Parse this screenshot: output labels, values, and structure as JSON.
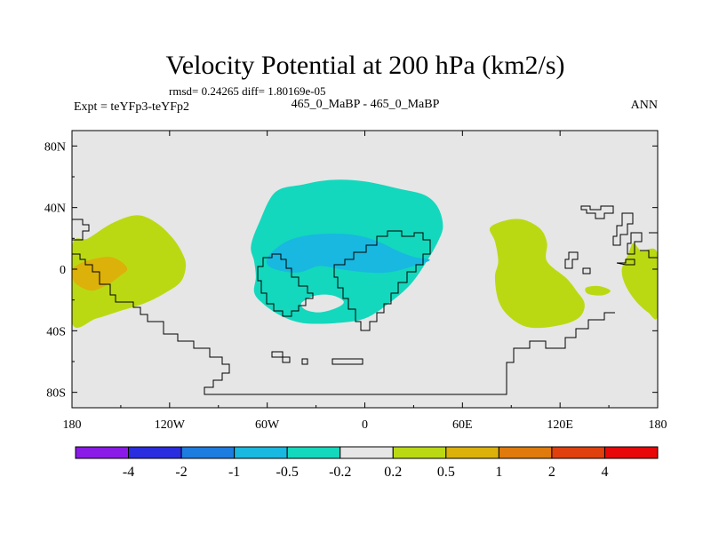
{
  "chart_data": {
    "type": "heatmap",
    "title": "Velocity Potential at 200 hPa (km2/s)",
    "subtitle": "rmsd= 0.24265 diff= 1.80169e-05",
    "left_label": "Expt = teYFp3-teYFp2",
    "center_label": "465_0_MaBP - 465_0_MaBP",
    "right_label": "ANN",
    "x_ticks": [
      "180",
      "120W",
      "60W",
      "0",
      "60E",
      "120E",
      "180"
    ],
    "x_tick_values": [
      -180,
      -120,
      -60,
      0,
      60,
      120,
      180
    ],
    "y_ticks": [
      "80N",
      "40N",
      "0",
      "40S",
      "80S"
    ],
    "y_tick_values": [
      80,
      40,
      0,
      -40,
      -80
    ],
    "xlim": [
      -180,
      180
    ],
    "ylim": [
      -90,
      90
    ],
    "colorbar": {
      "labels": [
        "-4",
        "-2",
        "-1",
        "-0.5",
        "-0.2",
        "0.2",
        "0.5",
        "1",
        "2",
        "4"
      ],
      "colors": [
        "#8b1ae8",
        "#2a2ce0",
        "#1c7ce0",
        "#18b8e0",
        "#13d8bd",
        "#e6e6e6",
        "#bbd913",
        "#dcb10a",
        "#e07a0c",
        "#e0400e",
        "#e80808"
      ]
    },
    "regions": [
      {
        "name": "west-pacific-positive",
        "level": "0.2 to 0.5",
        "color": "#bbd913",
        "points": [
          [
            -180,
            15
          ],
          [
            -170,
            20
          ],
          [
            -155,
            30
          ],
          [
            -140,
            35
          ],
          [
            -128,
            30
          ],
          [
            -118,
            20
          ],
          [
            -112,
            10
          ],
          [
            -110,
            2
          ],
          [
            -113,
            -8
          ],
          [
            -122,
            -15
          ],
          [
            -135,
            -22
          ],
          [
            -150,
            -27
          ],
          [
            -165,
            -32
          ],
          [
            -180,
            -35
          ]
        ]
      },
      {
        "name": "west-pacific-max",
        "level": "0.5 to 1",
        "color": "#dcb10a",
        "points": [
          [
            -180,
            0
          ],
          [
            -172,
            5
          ],
          [
            -158,
            8
          ],
          [
            -150,
            5
          ],
          [
            -146,
            0
          ],
          [
            -150,
            -4
          ],
          [
            -158,
            -10
          ],
          [
            -168,
            -14
          ],
          [
            -177,
            -10
          ],
          [
            -180,
            -5
          ]
        ]
      },
      {
        "name": "indian-ocean-positive",
        "level": "0.2 to 0.5",
        "color": "#bbd913",
        "points": [
          [
            77,
            27
          ],
          [
            88,
            32
          ],
          [
            98,
            32
          ],
          [
            108,
            26
          ],
          [
            112,
            17
          ],
          [
            112,
            5
          ],
          [
            124,
            -6
          ],
          [
            130,
            -14
          ],
          [
            135,
            -22
          ],
          [
            133,
            -30
          ],
          [
            125,
            -35
          ],
          [
            110,
            -38
          ],
          [
            98,
            -37
          ],
          [
            88,
            -30
          ],
          [
            82,
            -20
          ],
          [
            80,
            -5
          ],
          [
            82,
            5
          ],
          [
            80,
            18
          ]
        ]
      },
      {
        "name": "east-pacific-positive",
        "level": "0.2 to 0.5",
        "color": "#bbd913",
        "points": [
          [
            165,
            17
          ],
          [
            170,
            12
          ],
          [
            180,
            10
          ],
          [
            180,
            -30
          ],
          [
            174,
            -28
          ],
          [
            166,
            -20
          ],
          [
            160,
            -10
          ],
          [
            158,
            0
          ],
          [
            162,
            10
          ]
        ]
      },
      {
        "name": "pacific-small-positive",
        "level": "0.2 to 0.5",
        "color": "#bbd913",
        "points": [
          [
            136,
            -12
          ],
          [
            144,
            -11
          ],
          [
            151,
            -14
          ],
          [
            146,
            -17
          ],
          [
            137,
            -16
          ]
        ]
      },
      {
        "name": "americas-negative",
        "level": "-0.5 to -0.2",
        "color": "#13d8bd",
        "points": [
          [
            -55,
            50
          ],
          [
            -38,
            55
          ],
          [
            -20,
            58
          ],
          [
            0,
            57
          ],
          [
            22,
            52
          ],
          [
            37,
            48
          ],
          [
            45,
            40
          ],
          [
            48,
            28
          ],
          [
            45,
            18
          ],
          [
            38,
            5
          ],
          [
            28,
            -10
          ],
          [
            15,
            -22
          ],
          [
            0,
            -32
          ],
          [
            -18,
            -35
          ],
          [
            -38,
            -35
          ],
          [
            -52,
            -30
          ],
          [
            -63,
            -22
          ],
          [
            -68,
            -15
          ],
          [
            -67,
            -5
          ],
          [
            -68,
            5
          ],
          [
            -70,
            15
          ],
          [
            -65,
            30
          ]
        ]
      },
      {
        "name": "americas-core-negative",
        "level": "-1 to -0.5",
        "color": "#18b8e0",
        "points": [
          [
            -58,
            10
          ],
          [
            -48,
            18
          ],
          [
            -35,
            22
          ],
          [
            -20,
            23
          ],
          [
            -5,
            22
          ],
          [
            8,
            18
          ],
          [
            20,
            12
          ],
          [
            30,
            8
          ],
          [
            40,
            6
          ],
          [
            30,
            2
          ],
          [
            15,
            -2
          ],
          [
            0,
            -2
          ],
          [
            -15,
            0
          ],
          [
            -28,
            2
          ],
          [
            -40,
            -2
          ],
          [
            -52,
            -1
          ],
          [
            -60,
            3
          ]
        ]
      },
      {
        "name": "south-atlantic-hole",
        "level": "-0.2 to 0.2",
        "color": "#e6e6e6",
        "points": [
          [
            -38,
            -21
          ],
          [
            -30,
            -17
          ],
          [
            -20,
            -17
          ],
          [
            -13,
            -21
          ],
          [
            -17,
            -25
          ],
          [
            -27,
            -28
          ],
          [
            -35,
            -27
          ],
          [
            -39,
            -24
          ]
        ]
      }
    ]
  }
}
